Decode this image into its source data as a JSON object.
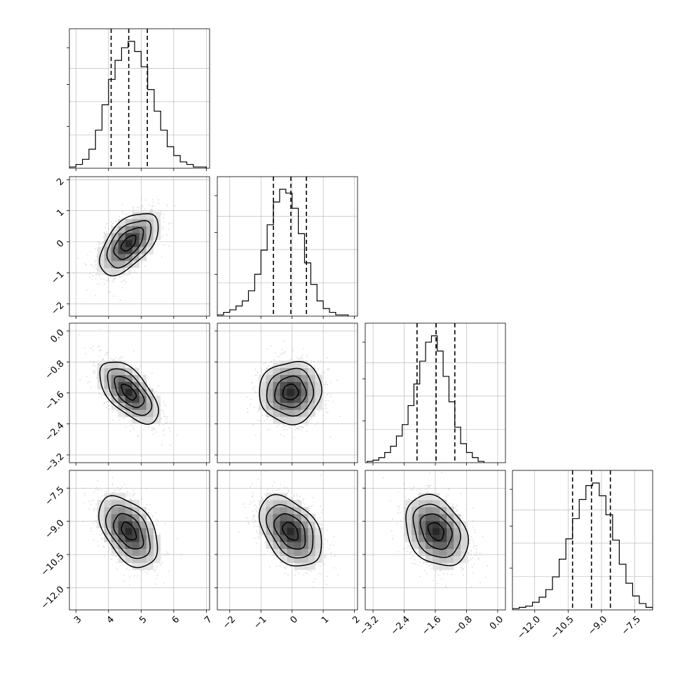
{
  "chart_data": {
    "type": "corner",
    "grid": true,
    "parameters": [
      {
        "range": [
          2.8,
          7.1
        ],
        "ticks": [
          3,
          4,
          5,
          6,
          7
        ],
        "tick_labels": [
          "3",
          "4",
          "5",
          "6",
          "7"
        ],
        "mean": 4.62,
        "sd": 0.45,
        "quantiles": [
          4.08,
          4.62,
          5.19
        ],
        "histogram": {
          "edges": [
            2.8,
            3.0,
            3.2,
            3.4,
            3.6,
            3.8,
            4.0,
            4.2,
            4.4,
            4.6,
            4.8,
            5.0,
            5.2,
            5.4,
            5.6,
            5.8,
            6.0,
            6.2,
            6.4,
            6.6,
            6.8,
            7.0
          ],
          "counts": [
            1,
            3,
            7,
            15,
            30,
            50,
            70,
            85,
            95,
            100,
            92,
            80,
            62,
            45,
            30,
            17,
            10,
            5,
            3,
            1,
            1
          ]
        }
      },
      {
        "range": [
          -2.4,
          2.1
        ],
        "ticks": [
          -2,
          -1,
          0,
          1,
          2
        ],
        "tick_labels": [
          "−2",
          "−1",
          "0",
          "1",
          "2"
        ],
        "mean": -0.05,
        "sd": 0.5,
        "quantiles": [
          -0.6,
          -0.04,
          0.46
        ],
        "histogram": {
          "edges": [
            -2.4,
            -2.2,
            -2.0,
            -1.8,
            -1.6,
            -1.4,
            -1.2,
            -1.0,
            -0.8,
            -0.6,
            -0.4,
            -0.2,
            0.0,
            0.2,
            0.4,
            0.6,
            0.8,
            1.0,
            1.2,
            1.4,
            1.6,
            1.8
          ],
          "counts": [
            1,
            3,
            5,
            8,
            12,
            20,
            33,
            52,
            72,
            90,
            100,
            97,
            85,
            65,
            42,
            25,
            12,
            6,
            3,
            1,
            1
          ]
        }
      },
      {
        "range": [
          -3.4,
          0.2
        ],
        "ticks": [
          -3.2,
          -2.4,
          -1.6,
          -0.8,
          0.0
        ],
        "tick_labels": [
          "−3.2",
          "−2.4",
          "−1.6",
          "−0.8",
          "0.0"
        ],
        "mean": -1.58,
        "sd": 0.4,
        "quantiles": [
          -2.07,
          -1.58,
          -1.1
        ],
        "histogram": {
          "edges": [
            -3.35,
            -3.2,
            -3.05,
            -2.9,
            -2.75,
            -2.6,
            -2.45,
            -2.3,
            -2.15,
            -2.0,
            -1.85,
            -1.7,
            -1.55,
            -1.4,
            -1.25,
            -1.1,
            -0.95,
            -0.8,
            -0.65,
            -0.5,
            -0.35
          ],
          "counts": [
            1,
            2,
            4,
            8,
            13,
            21,
            30,
            45,
            62,
            80,
            95,
            100,
            88,
            68,
            48,
            28,
            15,
            8,
            4,
            1
          ]
        }
      },
      {
        "range": [
          -13.0,
          -6.7
        ],
        "ticks": [
          -12.0,
          -10.5,
          -9.0,
          -7.5
        ],
        "tick_labels": [
          "−12.0",
          "−10.5",
          "−9.0",
          "−7.5"
        ],
        "mean": -9.45,
        "sd": 0.8,
        "quantiles": [
          -10.3,
          -9.45,
          -8.6
        ],
        "histogram": {
          "edges": [
            -13.0,
            -12.7,
            -12.4,
            -12.1,
            -11.8,
            -11.5,
            -11.2,
            -10.9,
            -10.6,
            -10.3,
            -10.0,
            -9.7,
            -9.4,
            -9.1,
            -8.8,
            -8.5,
            -8.2,
            -7.9,
            -7.6,
            -7.3,
            -7.0,
            -6.7
          ],
          "counts": [
            1,
            2,
            3,
            6,
            10,
            16,
            26,
            40,
            56,
            72,
            87,
            98,
            100,
            90,
            75,
            55,
            36,
            21,
            11,
            5,
            2
          ]
        }
      }
    ],
    "correlations": {
      "1,0": 0.55,
      "2,0": -0.6,
      "2,1": 0.05,
      "3,0": -0.45,
      "3,1": -0.4,
      "3,2": -0.3
    },
    "contour_levels_sigma": [
      0.5,
      1.0,
      1.5,
      2.0
    ]
  }
}
